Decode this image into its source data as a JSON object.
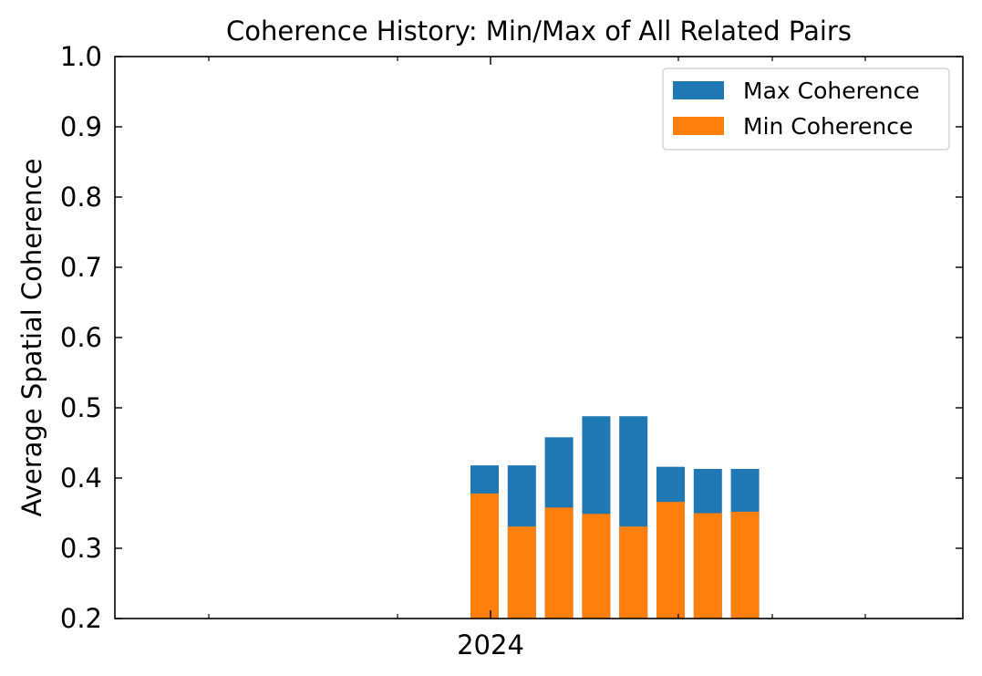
{
  "chart_data": {
    "type": "bar",
    "title": "Coherence History: Min/Max of All Related Pairs",
    "xlabel": "",
    "ylabel": "Average Spatial Coherence",
    "ylim": [
      0.2,
      1.0
    ],
    "yticks": [
      "0.2",
      "0.3",
      "0.4",
      "0.5",
      "0.6",
      "0.7",
      "0.8",
      "0.9",
      "1.0"
    ],
    "x_tick_label": "2024",
    "grid": false,
    "legend_position": "top-right",
    "colors": {
      "max": "#1f77b4",
      "min": "#ff7f0e"
    },
    "series": [
      {
        "name": "Max Coherence",
        "values": [
          0.418,
          0.418,
          0.458,
          0.488,
          0.488,
          0.416,
          0.413,
          0.413
        ]
      },
      {
        "name": "Min Coherence",
        "values": [
          0.378,
          0.331,
          0.358,
          0.349,
          0.331,
          0.366,
          0.35,
          0.352
        ]
      }
    ]
  }
}
